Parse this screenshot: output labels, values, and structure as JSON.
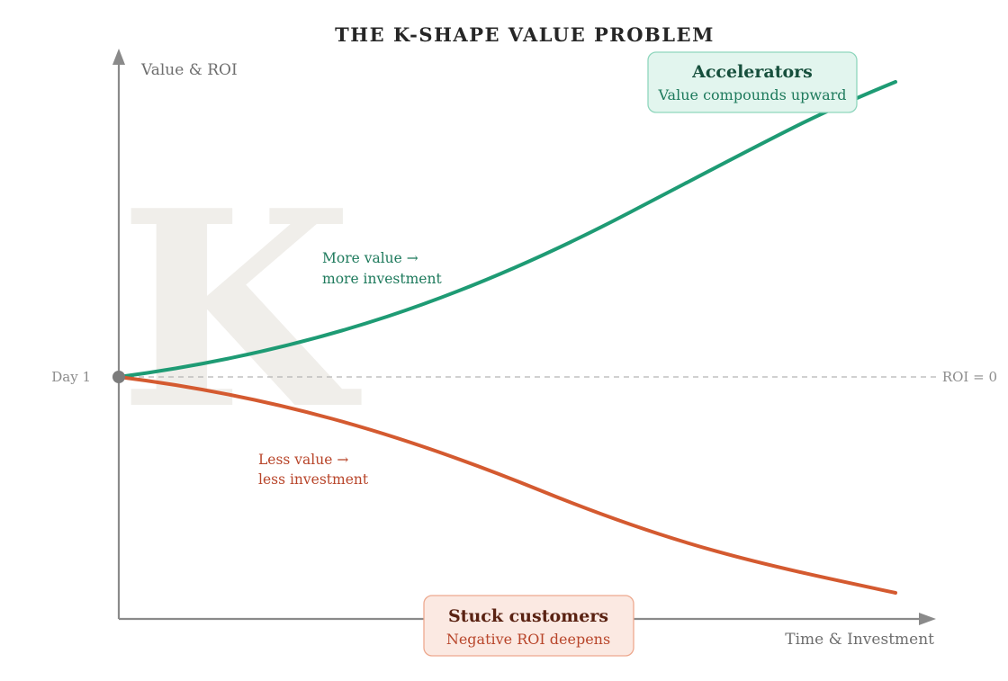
{
  "title": "THE K-SHAPE VALUE PROBLEM",
  "axes": {
    "y_label": "Value & ROI",
    "x_label": "Time & Investment"
  },
  "reference": {
    "start_label": "Day 1",
    "baseline_label": "ROI = 0"
  },
  "watermark": "K",
  "branches": {
    "upper": {
      "color": "#1e9b74",
      "note_line1": "More value →",
      "note_line2": "more investment",
      "callout_title": "Accelerators",
      "callout_subtitle": "Value compounds upward",
      "callout_fill": "#e2f5ee",
      "callout_stroke": "#8fd6bd",
      "text_color": "#164f3c",
      "sub_color": "#1e7a5c"
    },
    "lower": {
      "color": "#d45a30",
      "note_line1": "Less value →",
      "note_line2": "less investment",
      "callout_title": "Stuck customers",
      "callout_subtitle": "Negative ROI deepens",
      "callout_fill": "#fbe9e2",
      "callout_stroke": "#eda98f",
      "text_color": "#5a2212",
      "sub_color": "#b8452a"
    }
  }
}
